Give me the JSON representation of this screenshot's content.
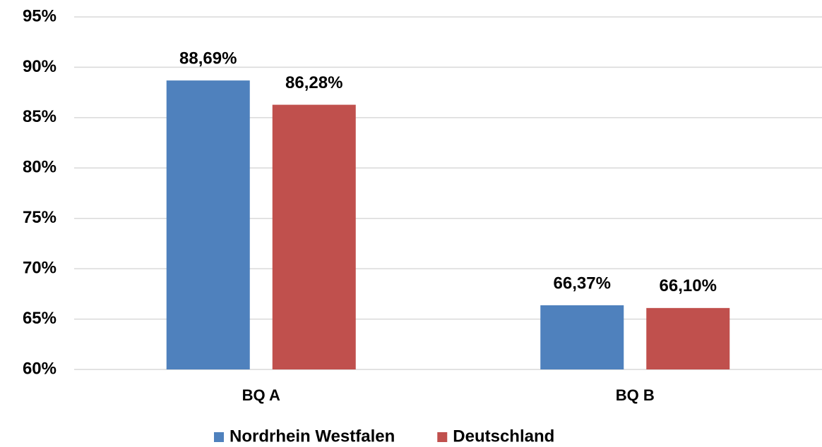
{
  "chart_data": {
    "type": "bar",
    "categories": [
      "BQ A",
      "BQ B"
    ],
    "series": [
      {
        "name": "Nordrhein Westfalen",
        "color": "#4f81bd",
        "values": [
          88.69,
          66.37
        ],
        "value_labels": [
          "88,69%",
          "66,37%"
        ]
      },
      {
        "name": "Deutschland",
        "color": "#c0504d",
        "values": [
          86.28,
          66.1
        ],
        "value_labels": [
          "86,28%",
          "66,10%"
        ]
      }
    ],
    "ylim": [
      60,
      95
    ],
    "yticks": [
      {
        "value": 60,
        "label": "60%"
      },
      {
        "value": 65,
        "label": "65%"
      },
      {
        "value": 70,
        "label": "70%"
      },
      {
        "value": 75,
        "label": "75%"
      },
      {
        "value": 80,
        "label": "80%"
      },
      {
        "value": 85,
        "label": "85%"
      },
      {
        "value": 90,
        "label": "90%"
      },
      {
        "value": 95,
        "label": "95%"
      }
    ],
    "grid": true,
    "legend": "bottom"
  }
}
